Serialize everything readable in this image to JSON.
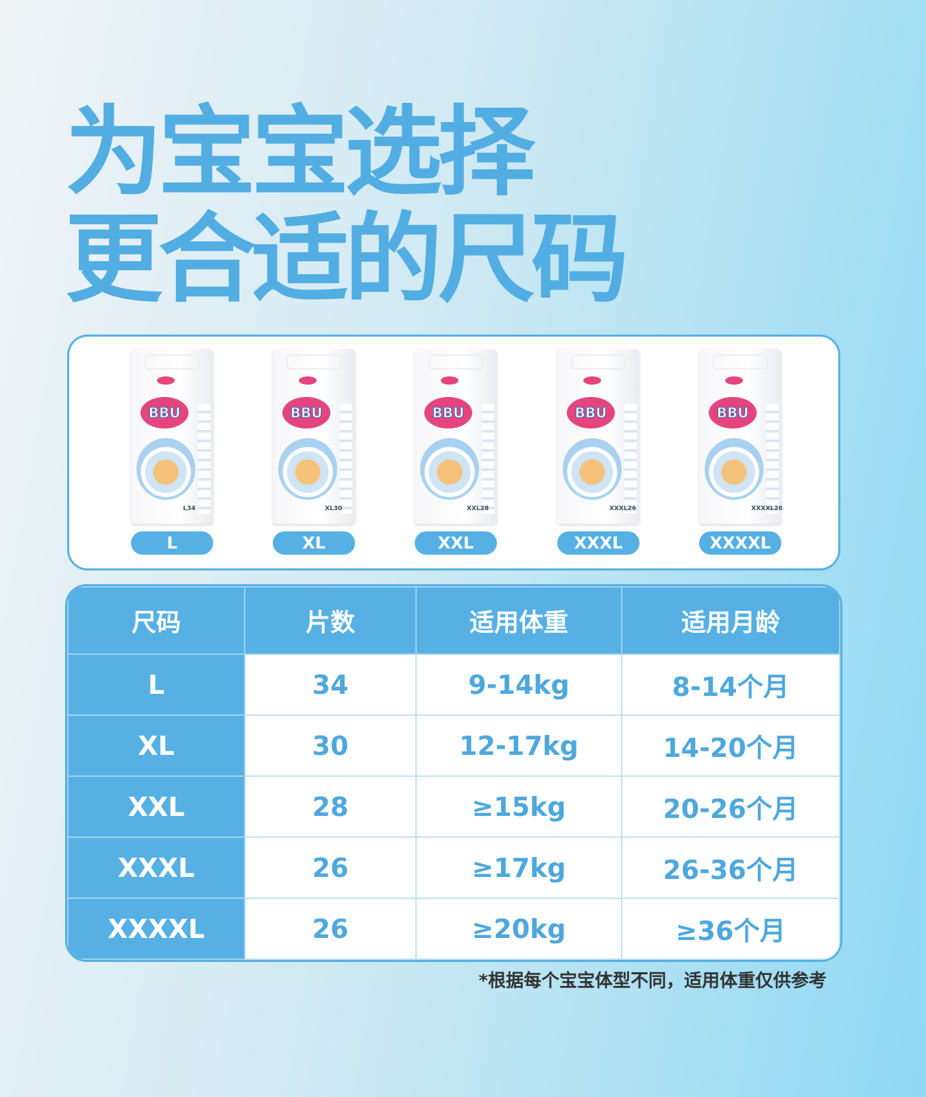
{
  "title": {
    "line1": "为宝宝选择",
    "line2": "更合适的尺码"
  },
  "products": [
    {
      "size": "L",
      "pack_label": "L34",
      "brand": "BBU"
    },
    {
      "size": "XL",
      "pack_label": "XL30",
      "brand": "BBU"
    },
    {
      "size": "XXL",
      "pack_label": "XXL28",
      "brand": "BBU"
    },
    {
      "size": "XXXL",
      "pack_label": "XXXL26",
      "brand": "BBU"
    },
    {
      "size": "XXXXL",
      "pack_label": "XXXXL26",
      "brand": "BBU"
    }
  ],
  "table": {
    "headers": [
      "尺码",
      "片数",
      "适用体重",
      "适用月龄"
    ],
    "rows": [
      [
        "L",
        "34",
        "9-14kg",
        "8-14个月"
      ],
      [
        "XL",
        "30",
        "12-17kg",
        "14-20个月"
      ],
      [
        "XXL",
        "28",
        "≥15kg",
        "20-26个月"
      ],
      [
        "XXXL",
        "26",
        "≥17kg",
        "26-36个月"
      ],
      [
        "XXXXL",
        "26",
        "≥20kg",
        "≥36个月"
      ]
    ]
  },
  "footnote": "*根据每个宝宝体型不同，适用体重仅供参考",
  "colors": {
    "accent": "#56b0e4",
    "brand_pink": "#e4457e"
  }
}
